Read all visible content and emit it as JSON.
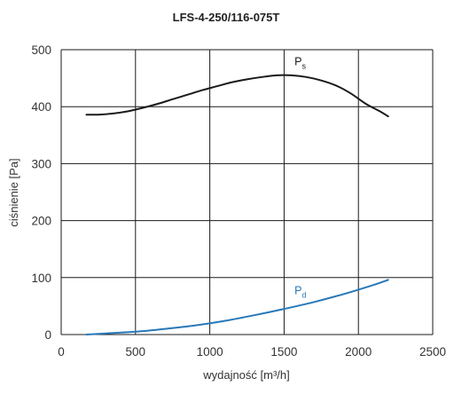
{
  "chart_data": {
    "type": "line",
    "title": "LFS-4-250/116-075T",
    "xlabel": "wydajność [m³/h]",
    "ylabel": "ciśnienie [Pa]",
    "xlim": [
      0,
      2500
    ],
    "ylim": [
      0,
      500
    ],
    "xticks": [
      "0",
      "500",
      "1000",
      "1500",
      "2000",
      "2500"
    ],
    "yticks": [
      "0",
      "100",
      "200",
      "300",
      "400",
      "500"
    ],
    "grid": true,
    "legend": "none",
    "series": [
      {
        "name": "Ps",
        "label_main": "P",
        "label_sub": "s",
        "color": "#1a1a1a",
        "x": [
          170,
          250,
          350,
          450,
          550,
          650,
          750,
          850,
          950,
          1050,
          1150,
          1250,
          1350,
          1450,
          1550,
          1650,
          1750,
          1850,
          1950,
          2050,
          2150,
          2200
        ],
        "y": [
          386,
          386,
          388,
          392,
          398,
          405,
          413,
          421,
          429,
          436,
          443,
          448,
          452,
          455,
          455,
          452,
          446,
          437,
          423,
          405,
          391,
          383
        ]
      },
      {
        "name": "Pd",
        "label_main": "P",
        "label_sub": "d",
        "color": "#2878b8",
        "x": [
          170,
          300,
          500,
          700,
          900,
          1100,
          1300,
          1500,
          1700,
          1900,
          2100,
          2200
        ],
        "y": [
          0,
          2,
          5,
          10,
          16,
          24,
          34,
          45,
          57,
          71,
          87,
          96
        ]
      }
    ]
  }
}
